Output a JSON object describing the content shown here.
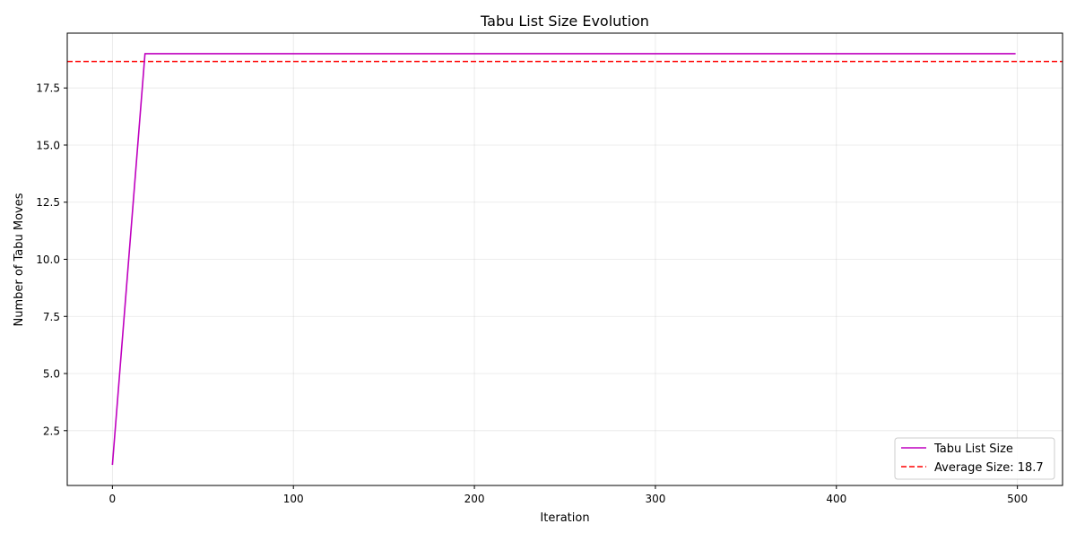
{
  "chart_data": {
    "type": "line",
    "title": "Tabu List Size Evolution",
    "xlabel": "Iteration",
    "ylabel": "Number of Tabu Moves",
    "xlim": [
      -24.95,
      524.95
    ],
    "ylim": [
      0.1,
      19.9
    ],
    "xticks": [
      0,
      100,
      200,
      300,
      400,
      500
    ],
    "yticks": [
      2.5,
      5.0,
      7.5,
      10.0,
      12.5,
      15.0,
      17.5
    ],
    "ytick_labels": [
      "2.5",
      "5.0",
      "7.5",
      "10.0",
      "12.5",
      "15.0",
      "17.5"
    ],
    "grid": true,
    "legend_position": "lower-right",
    "series": [
      {
        "name": "Tabu List Size",
        "color": "#bf00bf",
        "style": "solid",
        "x": [
          0,
          18,
          499
        ],
        "y": [
          1,
          19,
          19
        ]
      }
    ],
    "reference_lines": [
      {
        "name": "Average Size: 18.7",
        "orientation": "horizontal",
        "value": 18.66,
        "color": "#ff0000",
        "style": "dashed"
      }
    ]
  }
}
